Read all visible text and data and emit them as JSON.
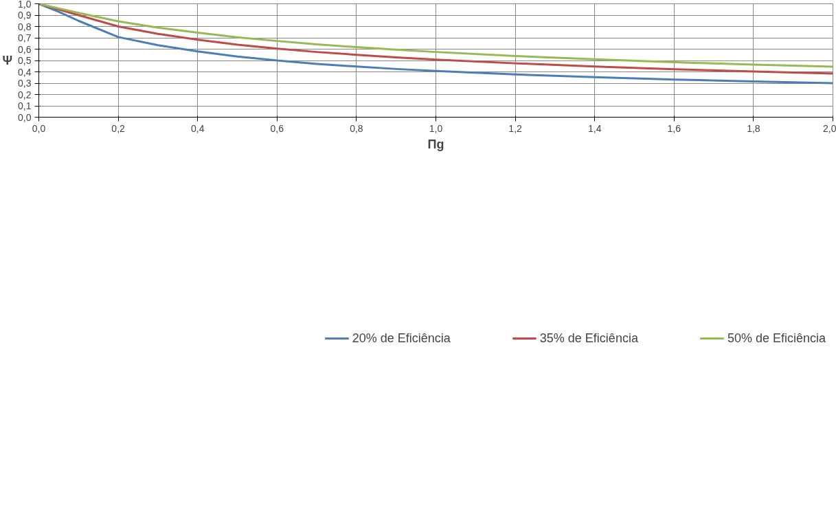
{
  "chart_data": {
    "type": "line",
    "xlabel": "Πg",
    "ylabel": "Ψ",
    "xlim": [
      0,
      2
    ],
    "ylim": [
      0,
      1
    ],
    "xticks": [
      {
        "value": 0,
        "label": "0,0"
      },
      {
        "value": 0.2,
        "label": "0,2"
      },
      {
        "value": 0.4,
        "label": "0,4"
      },
      {
        "value": 0.6,
        "label": "0,6"
      },
      {
        "value": 0.8,
        "label": "0,8"
      },
      {
        "value": 1.0,
        "label": "1,0"
      },
      {
        "value": 1.2,
        "label": "1,2"
      },
      {
        "value": 1.4,
        "label": "1,4"
      },
      {
        "value": 1.6,
        "label": "1,6"
      },
      {
        "value": 1.8,
        "label": "1,8"
      },
      {
        "value": 2.0,
        "label": "2,0"
      }
    ],
    "yticks": [
      {
        "value": 0,
        "label": "0,0"
      },
      {
        "value": 0.1,
        "label": "0,1"
      },
      {
        "value": 0.2,
        "label": "0,2"
      },
      {
        "value": 0.3,
        "label": "0,3"
      },
      {
        "value": 0.4,
        "label": "0,4"
      },
      {
        "value": 0.5,
        "label": "0,5"
      },
      {
        "value": 0.6,
        "label": "0,6"
      },
      {
        "value": 0.7,
        "label": "0,7"
      },
      {
        "value": 0.8,
        "label": "0,8"
      },
      {
        "value": 0.9,
        "label": "0,9"
      },
      {
        "value": 1.0,
        "label": "1,0"
      }
    ],
    "x": [
      0,
      0.05,
      0.1,
      0.2,
      0.3,
      0.4,
      0.5,
      0.6,
      0.7,
      0.8,
      0.9,
      1.0,
      1.2,
      1.4,
      1.6,
      1.8,
      2.0
    ],
    "series": [
      {
        "name": "20% de Eficiência",
        "color": "#4a7ebb",
        "values": [
          1.0,
          0.93,
          0.85,
          0.707,
          0.635,
          0.58,
          0.535,
          0.5,
          0.47,
          0.447,
          0.425,
          0.407,
          0.377,
          0.353,
          0.332,
          0.315,
          0.3
        ]
      },
      {
        "name": "35% de Eficiência",
        "color": "#be4b48",
        "values": [
          1.0,
          0.95,
          0.9,
          0.8,
          0.735,
          0.683,
          0.64,
          0.605,
          0.575,
          0.55,
          0.528,
          0.508,
          0.475,
          0.447,
          0.423,
          0.403,
          0.385
        ]
      },
      {
        "name": "50% de Eficiência",
        "color": "#98b954",
        "values": [
          1.0,
          0.96,
          0.92,
          0.845,
          0.79,
          0.745,
          0.705,
          0.672,
          0.643,
          0.618,
          0.595,
          0.575,
          0.54,
          0.51,
          0.485,
          0.463,
          0.445
        ]
      }
    ],
    "grid": true,
    "legend": "bottom",
    "marker": "none",
    "line_style": "solid"
  }
}
